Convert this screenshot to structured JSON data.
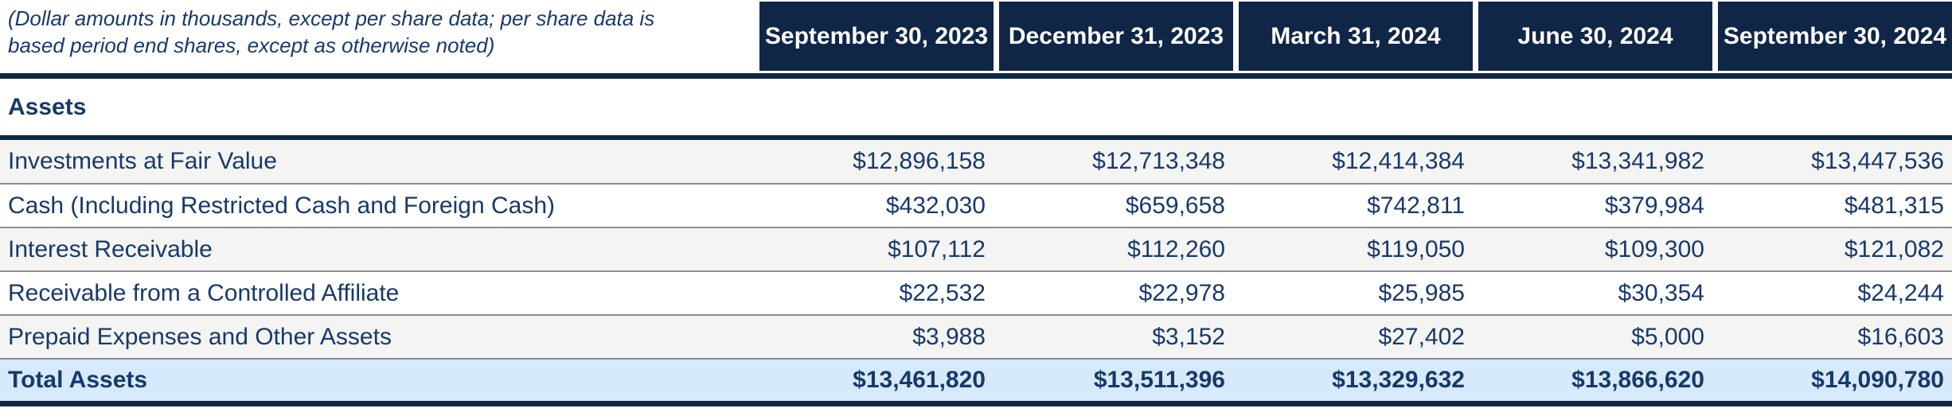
{
  "note_lines": [
    "(Dollar amounts in thousands, except per share data; per share data is",
    "based period end shares, except as otherwise noted)"
  ],
  "columns": [
    "September 30, 2023",
    "December 31, 2023",
    "March 31, 2024",
    "June 30, 2024",
    "September 30, 2024"
  ],
  "section": "Assets",
  "rows": [
    {
      "label": "Investments at Fair Value",
      "values": [
        "$12,896,158",
        "$12,713,348",
        "$12,414,384",
        "$13,341,982",
        "$13,447,536"
      ]
    },
    {
      "label": "Cash (Including Restricted Cash and Foreign Cash)",
      "values": [
        "$432,030",
        "$659,658",
        "$742,811",
        "$379,984",
        "$481,315"
      ]
    },
    {
      "label": "Interest Receivable",
      "values": [
        "$107,112",
        "$112,260",
        "$119,050",
        "$109,300",
        "$121,082"
      ]
    },
    {
      "label": "Receivable from a Controlled Affiliate",
      "values": [
        "$22,532",
        "$22,978",
        "$25,985",
        "$30,354",
        "$24,244"
      ]
    },
    {
      "label": "Prepaid Expenses and Other Assets",
      "values": [
        "$3,988",
        "$3,152",
        "$27,402",
        "$5,000",
        "$16,603"
      ]
    }
  ],
  "total_row": {
    "label": "Total Assets",
    "values": [
      "$13,461,820",
      "$13,511,396",
      "$13,329,632",
      "$13,866,620",
      "$14,090,780"
    ]
  },
  "colors": {
    "navy": "#102647",
    "text": "#17396b",
    "lightblue": "#d7eafb",
    "graystripe": "#f4f4f3",
    "separator": "#8c8c94"
  }
}
